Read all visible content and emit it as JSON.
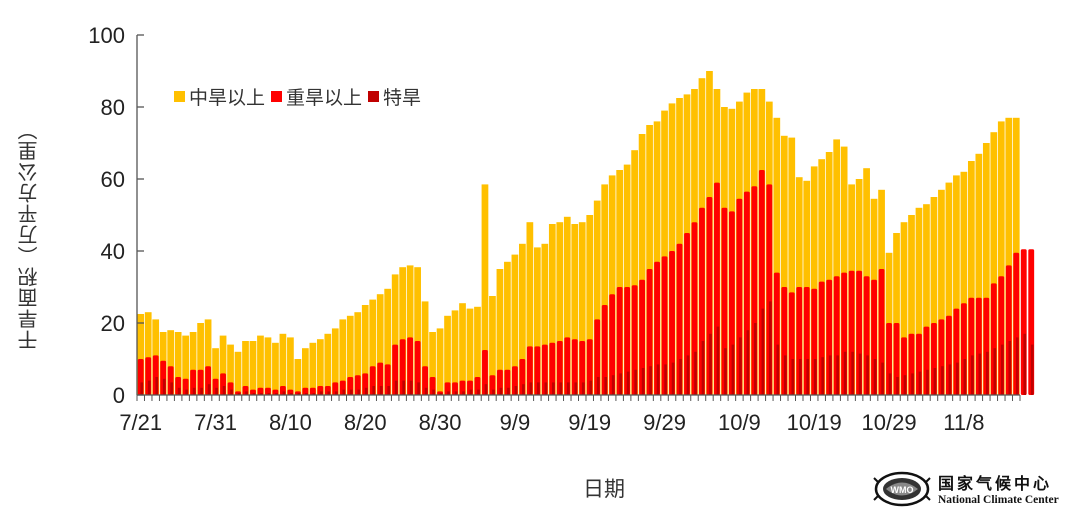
{
  "chart_data": {
    "type": "bar",
    "subtype": "overlapping-bar",
    "title": "",
    "xlabel": "日期",
    "ylabel": "干旱面积（万平方公里）",
    "ylim": [
      0,
      100
    ],
    "yticks": [
      0,
      20,
      40,
      60,
      80,
      100
    ],
    "x_tick_labels": [
      "7/21",
      "7/31",
      "8/10",
      "8/20",
      "8/30",
      "9/9",
      "9/19",
      "9/29",
      "10/9",
      "10/19",
      "10/29",
      "11/8"
    ],
    "x_start": "7/21",
    "x_end": "11/13",
    "legend_position": "upper-left inside",
    "grid": false,
    "colors": {
      "moderate": "#FFC000",
      "severe": "#FF0000",
      "extreme": "#C00000"
    },
    "series": [
      {
        "name": "中旱以上",
        "color": "#FFC000",
        "values": [
          22.5,
          23,
          21,
          17.5,
          18,
          17.5,
          16.5,
          17.5,
          20,
          21,
          13,
          16.5,
          14,
          12,
          15,
          15,
          16.5,
          16,
          14.5,
          17,
          16,
          10,
          13,
          14.5,
          15.5,
          17,
          18.5,
          21,
          22,
          23,
          25,
          26.5,
          28,
          29.5,
          33.5,
          35.5,
          36,
          35.5,
          26,
          17.5,
          18.5,
          22,
          23.5,
          25.5,
          24,
          24.5,
          58.5,
          27.5,
          35,
          37,
          39,
          42,
          48,
          41,
          42,
          47.5,
          48,
          49.5,
          47.5,
          48,
          50,
          54,
          58.5,
          61,
          62.5,
          64,
          68,
          72.5,
          75,
          76,
          79,
          81,
          82.5,
          83.5,
          85,
          88,
          90,
          85,
          80,
          79.5,
          81.5,
          84,
          85,
          85,
          81.5,
          77,
          72,
          71.5,
          60.5,
          59.5,
          63.5,
          65.5,
          67.5,
          71,
          69,
          58.5,
          60,
          63,
          54.5,
          57,
          39.5,
          45,
          48,
          50,
          52,
          53,
          55,
          57,
          59,
          61,
          62,
          65,
          67,
          70,
          73,
          76,
          77,
          77
        ]
      },
      {
        "name": "重旱以上",
        "color": "#FF0000",
        "values": [
          10,
          10.5,
          11,
          9.5,
          8,
          5,
          4.5,
          7,
          7,
          8,
          4.5,
          6,
          3.5,
          1,
          2.5,
          1.5,
          2,
          2,
          1.5,
          2.5,
          1.5,
          1,
          2,
          2,
          2.5,
          2.5,
          3.5,
          4,
          5,
          5.5,
          6,
          8,
          9,
          8.5,
          14,
          15.5,
          16,
          15,
          8,
          5,
          1,
          3.5,
          3.5,
          4,
          4,
          5,
          12.5,
          5.5,
          7,
          7,
          8,
          10,
          13.5,
          13.5,
          14,
          14.5,
          15,
          16,
          15.5,
          15,
          15.5,
          21,
          25,
          28,
          30,
          30,
          30.5,
          32,
          35,
          37,
          38.5,
          40,
          42,
          45,
          48,
          52,
          55,
          59,
          52,
          51,
          54.5,
          56.5,
          58,
          62.5,
          58.5,
          34,
          30,
          28.5,
          30,
          30,
          29.5,
          31.5,
          32,
          33,
          34,
          34.5,
          34.5,
          33,
          32,
          35,
          20,
          20,
          16,
          17,
          17,
          19,
          20,
          21,
          22,
          24,
          25.5,
          27,
          27,
          27,
          31,
          33,
          36,
          39.5,
          40.5,
          40.5
        ]
      },
      {
        "name": "特旱",
        "color": "#C00000",
        "values": [
          3.5,
          4,
          5,
          4.5,
          3.5,
          2,
          1.5,
          2,
          2,
          3,
          2,
          2.5,
          1.5,
          0.5,
          1,
          0.5,
          0.5,
          0.5,
          0.5,
          1,
          0.5,
          0.5,
          0.5,
          0.5,
          1,
          1,
          1,
          1.5,
          1.5,
          1.5,
          2,
          2.5,
          2.5,
          2.5,
          4,
          4,
          4,
          3.5,
          2,
          1.5,
          0.5,
          1,
          1,
          1,
          1.5,
          1.5,
          3,
          1.5,
          2,
          2,
          2.5,
          3,
          3.5,
          3.5,
          3.5,
          3.5,
          3.5,
          3.5,
          3.5,
          3.5,
          4,
          5,
          5,
          5.5,
          6,
          6.5,
          7,
          7.5,
          8,
          8.5,
          8.5,
          9,
          10,
          11,
          12,
          15,
          17,
          19,
          13,
          14,
          16,
          18,
          20,
          24,
          26,
          14,
          11,
          10,
          10,
          10,
          10,
          10.5,
          11,
          11,
          12,
          12,
          11.5,
          11,
          10,
          9,
          6,
          5,
          5.5,
          6,
          6.5,
          7,
          7.5,
          8,
          8.5,
          9,
          10,
          11,
          11.5,
          12,
          13,
          14,
          15,
          16,
          17,
          14
        ]
      }
    ]
  },
  "legend": {
    "items": [
      {
        "label": "中旱以上",
        "color": "#FFC000"
      },
      {
        "label": "重旱以上",
        "color": "#FF0000"
      },
      {
        "label": "特旱",
        "color": "#C00000"
      }
    ]
  },
  "axes": {
    "ylabel": "干旱面积（万平方公里）",
    "xlabel": "日期"
  },
  "logo": {
    "name_cn": "国家气候中心",
    "name_en": "National Climate Center"
  }
}
